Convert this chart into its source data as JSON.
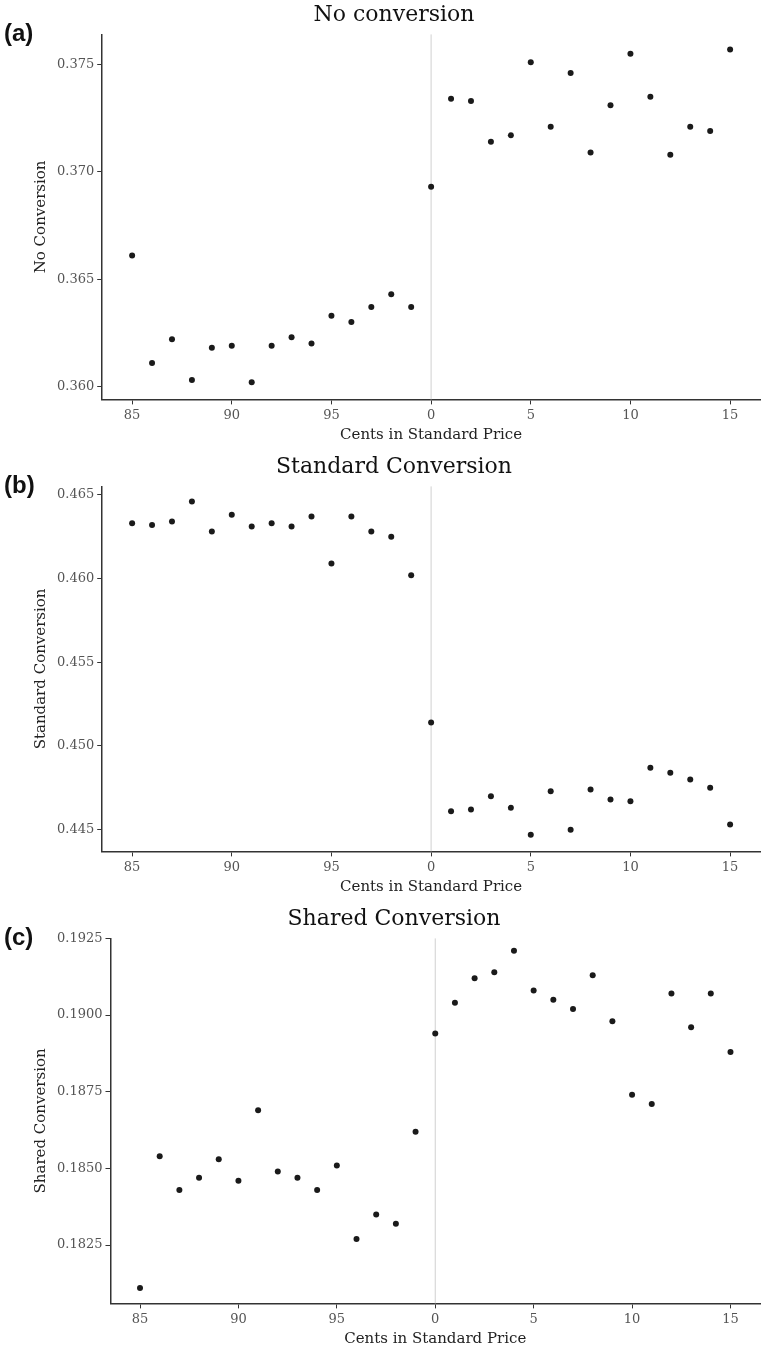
{
  "chart_data": [
    {
      "type": "scatter",
      "title": "No conversion",
      "xlabel": "Cents in Standard Price",
      "ylabel": "No Conversion",
      "annotations": [
        "(a)"
      ],
      "marker": "circle",
      "grid": false,
      "legend": false,
      "categories": [
        "85",
        null,
        null,
        null,
        null,
        "90",
        null,
        null,
        null,
        null,
        "95",
        null,
        null,
        null,
        null,
        "0",
        null,
        null,
        null,
        null,
        "5",
        null,
        null,
        null,
        null,
        "10",
        null,
        null,
        null,
        null,
        "15"
      ],
      "ylim": [
        0.3594,
        0.3764
      ],
      "yticks": [
        {
          "value": 0.36,
          "label": "0.360"
        },
        0.365,
        {
          "value": 0.37,
          "label": "0.370"
        },
        0.375
      ],
      "ref_lines": [
        {
          "axis": "x",
          "value": "0",
          "color": "#d0d0d0"
        }
      ],
      "series": [
        {
          "color": "#1a1a1a",
          "values": [
            0.3661,
            0.3611,
            0.3622,
            0.3603,
            0.3618,
            0.3619,
            0.3602,
            0.3619,
            0.3623,
            0.362,
            0.3633,
            0.363,
            0.3637,
            0.3643,
            0.3637,
            0.3693,
            0.3734,
            0.3733,
            0.3714,
            0.3717,
            0.3751,
            0.3721,
            0.3746,
            0.3709,
            0.3731,
            0.3755,
            0.3735,
            0.3708,
            0.3721,
            0.3719,
            0.3757
          ]
        }
      ]
    },
    {
      "type": "scatter",
      "title": "Standard Conversion",
      "xlabel": "Cents in Standard Price",
      "ylabel": "Standard Conversion",
      "annotations": [
        "(b)"
      ],
      "marker": "circle",
      "grid": false,
      "legend": false,
      "categories": [
        "85",
        null,
        null,
        null,
        null,
        "90",
        null,
        null,
        null,
        null,
        "95",
        null,
        null,
        null,
        null,
        "0",
        null,
        null,
        null,
        null,
        "5",
        null,
        null,
        null,
        null,
        "10",
        null,
        null,
        null,
        null,
        "15"
      ],
      "ylim": [
        0.4437,
        0.4655
      ],
      "yticks": [
        0.445,
        {
          "value": 0.45,
          "label": "0.450"
        },
        0.455,
        {
          "value": 0.46,
          "label": "0.460"
        },
        0.465
      ],
      "ref_lines": [
        {
          "axis": "x",
          "value": "0",
          "color": "#d0d0d0"
        }
      ],
      "series": [
        {
          "color": "#1a1a1a",
          "values": [
            0.4633,
            0.4632,
            0.4634,
            0.4646,
            0.4628,
            0.4638,
            0.4631,
            0.4633,
            0.4631,
            0.4637,
            0.4609,
            0.4637,
            0.4628,
            0.4625,
            0.4602,
            0.4514,
            0.4461,
            0.4462,
            0.447,
            0.4463,
            0.4447,
            0.4473,
            0.445,
            0.4474,
            0.4468,
            0.4467,
            0.4487,
            0.4484,
            0.448,
            0.4475,
            0.4453
          ]
        }
      ]
    },
    {
      "type": "scatter",
      "title": "Shared Conversion",
      "xlabel": "Cents in Standard Price",
      "ylabel": "Shared Conversion",
      "annotations": [
        "(c)"
      ],
      "marker": "circle",
      "grid": false,
      "legend": false,
      "categories": [
        "85",
        null,
        null,
        null,
        null,
        "90",
        null,
        null,
        null,
        null,
        "95",
        null,
        null,
        null,
        null,
        "0",
        null,
        null,
        null,
        null,
        "5",
        null,
        null,
        null,
        null,
        "10",
        null,
        null,
        null,
        null,
        "15"
      ],
      "ylim": [
        0.1806,
        0.1925
      ],
      "yticks": [
        {
          "value": 0.1825,
          "label": "0.1825"
        },
        {
          "value": 0.185,
          "label": "0.1850"
        },
        {
          "value": 0.1875,
          "label": "0.1875"
        },
        {
          "value": 0.19,
          "label": "0.1900"
        },
        {
          "value": 0.1925,
          "label": "0.1925"
        }
      ],
      "ref_lines": [
        {
          "axis": "x",
          "value": "0",
          "color": "#d0d0d0"
        }
      ],
      "series": [
        {
          "color": "#1a1a1a",
          "values": [
            0.1811,
            0.1854,
            0.1843,
            0.1847,
            0.1853,
            0.1846,
            0.1869,
            0.1849,
            0.1847,
            0.1843,
            0.1851,
            0.1827,
            0.1835,
            0.1832,
            0.1862,
            0.1894,
            0.1904,
            0.1912,
            0.1914,
            0.1921,
            0.1908,
            0.1905,
            0.1902,
            0.1913,
            0.1898,
            0.1874,
            0.1871,
            0.1907,
            0.1896,
            0.1907,
            0.1888
          ]
        }
      ]
    }
  ]
}
